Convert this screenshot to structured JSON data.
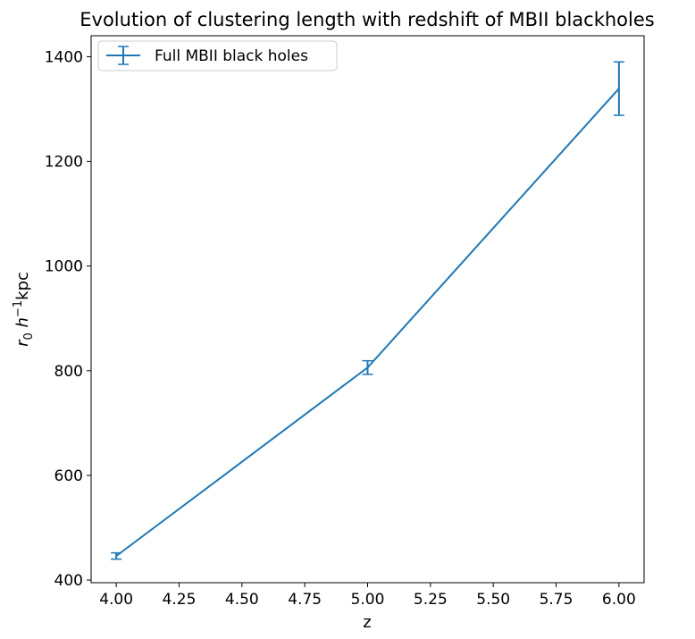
{
  "chart_data": {
    "type": "line",
    "title": "Evolution of clustering length with redshift of MBII blackholes",
    "xlabel": "z",
    "ylabel_main": "r",
    "ylabel_sub": "0",
    "ylabel_h": "h",
    "ylabel_exp": "−1",
    "ylabel_unit": "kpc",
    "xlim": [
      3.9,
      6.1
    ],
    "ylim": [
      395,
      1440
    ],
    "xticks": [
      4.0,
      4.25,
      4.5,
      4.75,
      5.0,
      5.25,
      5.5,
      5.75,
      6.0
    ],
    "xtick_labels": [
      "4.00",
      "4.25",
      "4.50",
      "4.75",
      "5.00",
      "5.25",
      "5.50",
      "5.75",
      "6.00"
    ],
    "yticks": [
      400,
      600,
      800,
      1000,
      1200,
      1400
    ],
    "ytick_labels": [
      "400",
      "600",
      "800",
      "1000",
      "1200",
      "1400"
    ],
    "grid": false,
    "legend_position": "upper-left",
    "series": [
      {
        "name": "Full MBII black holes",
        "color": "#1f77b4",
        "x": [
          4.0,
          5.0,
          6.0
        ],
        "y": [
          446,
          806,
          1339
        ],
        "yerr": [
          6,
          13,
          51
        ]
      }
    ]
  }
}
